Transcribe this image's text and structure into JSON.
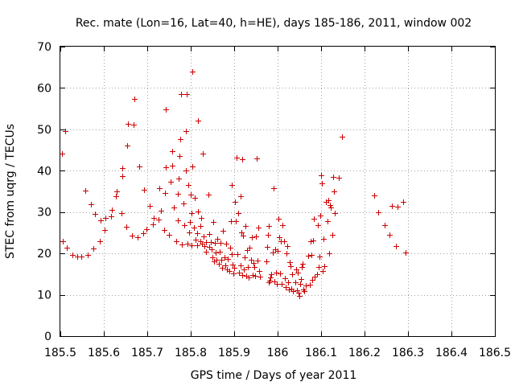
{
  "chart_data": {
    "type": "scatter",
    "title": "Rec. mate (Lon=16, Lat=40, h=HE), days 185-186, 2011, window 002",
    "xlabel": "GPS time / Days of year 2011",
    "ylabel": "STEC from uqrg / TECUs",
    "xlim": [
      185.5,
      186.5
    ],
    "ylim": [
      0,
      70
    ],
    "x_ticks": [
      "185.5",
      "185.6",
      "185.7",
      "185.8",
      "185.9",
      "186",
      "186.1",
      "186.2",
      "186.3",
      "186.4",
      "186.5"
    ],
    "y_ticks": [
      "0",
      "10",
      "20",
      "30",
      "40",
      "50",
      "60",
      "70"
    ],
    "x_tick_values": [
      185.5,
      185.6,
      185.7,
      185.8,
      185.9,
      186.0,
      186.1,
      186.2,
      186.3,
      186.4,
      186.5
    ],
    "y_tick_values": [
      0,
      10,
      20,
      30,
      40,
      50,
      60,
      70
    ],
    "grid": true,
    "marker": "+",
    "color": "#cc0000",
    "points": [
      [
        185.503,
        44.1
      ],
      [
        185.505,
        23.0
      ],
      [
        185.512,
        49.6
      ],
      [
        185.515,
        21.4
      ],
      [
        185.528,
        19.7
      ],
      [
        185.538,
        19.2
      ],
      [
        185.548,
        19.3
      ],
      [
        185.558,
        35.1
      ],
      [
        185.563,
        19.6
      ],
      [
        185.57,
        31.8
      ],
      [
        185.576,
        21.1
      ],
      [
        185.58,
        29.6
      ],
      [
        185.591,
        22.9
      ],
      [
        185.592,
        28.0
      ],
      [
        185.601,
        25.6
      ],
      [
        185.604,
        28.6
      ],
      [
        185.617,
        29.0
      ],
      [
        185.618,
        30.5
      ],
      [
        185.628,
        33.9
      ],
      [
        185.629,
        35.0
      ],
      [
        185.641,
        29.8
      ],
      [
        185.642,
        38.6
      ],
      [
        185.643,
        40.6
      ],
      [
        185.652,
        26.4
      ],
      [
        185.653,
        46.0
      ],
      [
        185.655,
        51.3
      ],
      [
        185.665,
        24.3
      ],
      [
        185.668,
        51.1
      ],
      [
        185.67,
        57.4
      ],
      [
        185.678,
        23.9
      ],
      [
        185.681,
        41.1
      ],
      [
        185.69,
        24.8
      ],
      [
        185.692,
        35.3
      ],
      [
        185.698,
        25.8
      ],
      [
        185.705,
        31.5
      ],
      [
        185.713,
        27.0
      ],
      [
        185.714,
        28.6
      ],
      [
        185.726,
        28.1
      ],
      [
        185.728,
        35.8
      ],
      [
        185.732,
        30.3
      ],
      [
        185.738,
        25.7
      ],
      [
        185.74,
        34.6
      ],
      [
        185.742,
        40.8
      ],
      [
        185.743,
        54.9
      ],
      [
        185.75,
        24.5
      ],
      [
        185.754,
        37.4
      ],
      [
        185.757,
        41.3
      ],
      [
        185.758,
        44.8
      ],
      [
        185.762,
        31.2
      ],
      [
        185.766,
        22.9
      ],
      [
        185.77,
        28.0
      ],
      [
        185.771,
        34.4
      ],
      [
        185.773,
        38.2
      ],
      [
        185.774,
        43.6
      ],
      [
        185.776,
        47.6
      ],
      [
        185.778,
        58.5
      ],
      [
        185.78,
        22.2
      ],
      [
        185.783,
        32.0
      ],
      [
        185.786,
        26.8
      ],
      [
        185.788,
        40.0
      ],
      [
        185.789,
        49.6
      ],
      [
        185.79,
        58.5
      ],
      [
        185.793,
        22.3
      ],
      [
        185.794,
        36.6
      ],
      [
        185.796,
        25.1
      ],
      [
        185.798,
        27.6
      ],
      [
        185.8,
        34.3
      ],
      [
        185.801,
        29.7
      ],
      [
        185.802,
        22.0
      ],
      [
        185.803,
        41.0
      ],
      [
        185.804,
        64.0
      ],
      [
        185.808,
        26.3
      ],
      [
        185.81,
        33.5
      ],
      [
        185.812,
        23.3
      ],
      [
        185.814,
        24.9
      ],
      [
        185.815,
        22.0
      ],
      [
        185.816,
        30.1
      ],
      [
        185.817,
        52.2
      ],
      [
        185.822,
        26.7
      ],
      [
        185.823,
        23.0
      ],
      [
        185.825,
        28.6
      ],
      [
        185.826,
        22.3
      ],
      [
        185.828,
        44.1
      ],
      [
        185.83,
        24.2
      ],
      [
        185.832,
        21.8
      ],
      [
        185.835,
        20.5
      ],
      [
        185.836,
        22.8
      ],
      [
        185.84,
        34.3
      ],
      [
        185.842,
        21.6
      ],
      [
        185.843,
        24.6
      ],
      [
        185.846,
        22.8
      ],
      [
        185.848,
        21.0
      ],
      [
        185.85,
        19.1
      ],
      [
        185.852,
        27.7
      ],
      [
        185.854,
        18.0
      ],
      [
        185.856,
        22.5
      ],
      [
        185.858,
        20.2
      ],
      [
        185.86,
        18.5
      ],
      [
        185.862,
        23.6
      ],
      [
        185.864,
        17.5
      ],
      [
        185.866,
        20.4
      ],
      [
        185.868,
        22.6
      ],
      [
        185.87,
        18.5
      ],
      [
        185.872,
        16.5
      ],
      [
        185.874,
        25.5
      ],
      [
        185.878,
        19.0
      ],
      [
        185.88,
        17.1
      ],
      [
        185.882,
        22.4
      ],
      [
        185.884,
        16.2
      ],
      [
        185.886,
        18.6
      ],
      [
        185.888,
        15.7
      ],
      [
        185.89,
        21.4
      ],
      [
        185.892,
        27.9
      ],
      [
        185.894,
        19.8
      ],
      [
        185.895,
        36.6
      ],
      [
        185.896,
        17.3
      ],
      [
        185.898,
        15.2
      ],
      [
        185.9,
        16.5
      ],
      [
        185.902,
        32.5
      ],
      [
        185.904,
        27.9
      ],
      [
        185.906,
        43.1
      ],
      [
        185.908,
        19.8
      ],
      [
        185.91,
        29.8
      ],
      [
        185.912,
        15.4
      ],
      [
        185.914,
        33.9
      ],
      [
        185.915,
        17.2
      ],
      [
        185.916,
        25.0
      ],
      [
        185.918,
        42.7
      ],
      [
        185.919,
        14.8
      ],
      [
        185.92,
        24.3
      ],
      [
        185.922,
        16.1
      ],
      [
        185.924,
        19.0
      ],
      [
        185.926,
        26.6
      ],
      [
        185.928,
        14.6
      ],
      [
        185.93,
        20.8
      ],
      [
        185.932,
        16.7
      ],
      [
        185.934,
        14.2
      ],
      [
        185.936,
        21.3
      ],
      [
        185.938,
        18.5
      ],
      [
        185.94,
        24.0
      ],
      [
        185.942,
        14.8
      ],
      [
        185.944,
        17.6
      ],
      [
        185.946,
        16.7
      ],
      [
        185.948,
        14.5
      ],
      [
        185.95,
        24.2
      ],
      [
        185.952,
        43.0
      ],
      [
        185.954,
        18.2
      ],
      [
        185.956,
        26.2
      ],
      [
        185.958,
        15.7
      ],
      [
        185.96,
        14.3
      ],
      [
        185.975,
        18.0
      ],
      [
        185.976,
        21.6
      ],
      [
        185.978,
        24.5
      ],
      [
        185.979,
        26.7
      ],
      [
        185.98,
        13.0
      ],
      [
        185.982,
        13.5
      ],
      [
        185.984,
        14.2
      ],
      [
        185.986,
        14.9
      ],
      [
        185.988,
        20.2
      ],
      [
        185.99,
        35.8
      ],
      [
        185.992,
        13.3
      ],
      [
        185.994,
        21.0
      ],
      [
        185.996,
        15.3
      ],
      [
        185.998,
        12.7
      ],
      [
        186.0,
        20.7
      ],
      [
        186.002,
        28.3
      ],
      [
        186.004,
        24.0
      ],
      [
        186.006,
        15.2
      ],
      [
        186.008,
        23.0
      ],
      [
        186.01,
        12.6
      ],
      [
        186.012,
        26.9
      ],
      [
        186.014,
        22.9
      ],
      [
        186.016,
        14.0
      ],
      [
        186.018,
        11.8
      ],
      [
        186.02,
        20.0
      ],
      [
        186.022,
        21.8
      ],
      [
        186.024,
        13.1
      ],
      [
        186.026,
        11.3
      ],
      [
        186.028,
        17.8
      ],
      [
        186.03,
        17.0
      ],
      [
        186.032,
        11.5
      ],
      [
        186.034,
        15.0
      ],
      [
        186.036,
        10.8
      ],
      [
        186.04,
        13.0
      ],
      [
        186.042,
        16.1
      ],
      [
        186.044,
        11.0
      ],
      [
        186.046,
        15.4
      ],
      [
        186.048,
        10.5
      ],
      [
        186.05,
        9.8
      ],
      [
        186.052,
        12.6
      ],
      [
        186.054,
        13.9
      ],
      [
        186.056,
        16.8
      ],
      [
        186.058,
        17.5
      ],
      [
        186.06,
        11.2
      ],
      [
        186.062,
        10.9
      ],
      [
        186.064,
        12.3
      ],
      [
        186.07,
        19.4
      ],
      [
        186.074,
        12.5
      ],
      [
        186.076,
        23.0
      ],
      [
        186.078,
        19.6
      ],
      [
        186.08,
        13.6
      ],
      [
        186.082,
        23.1
      ],
      [
        186.084,
        28.3
      ],
      [
        186.086,
        14.3
      ],
      [
        186.09,
        15.0
      ],
      [
        186.092,
        26.9
      ],
      [
        186.094,
        16.8
      ],
      [
        186.096,
        19.3
      ],
      [
        186.098,
        29.2
      ],
      [
        186.1,
        38.8
      ],
      [
        186.102,
        37.0
      ],
      [
        186.104,
        15.7
      ],
      [
        186.106,
        23.5
      ],
      [
        186.108,
        17.0
      ],
      [
        186.112,
        32.4
      ],
      [
        186.114,
        27.8
      ],
      [
        186.116,
        32.8
      ],
      [
        186.118,
        20.0
      ],
      [
        186.12,
        31.6
      ],
      [
        186.122,
        31.2
      ],
      [
        186.126,
        24.5
      ],
      [
        186.128,
        38.5
      ],
      [
        186.13,
        35.0
      ],
      [
        186.132,
        29.8
      ],
      [
        186.14,
        38.4
      ],
      [
        186.148,
        48.2
      ],
      [
        186.222,
        34.0
      ],
      [
        186.232,
        30.0
      ],
      [
        186.246,
        26.8
      ],
      [
        186.258,
        24.5
      ],
      [
        186.263,
        31.5
      ],
      [
        186.273,
        21.8
      ],
      [
        186.276,
        31.4
      ],
      [
        186.288,
        32.4
      ],
      [
        186.294,
        20.2
      ]
    ]
  }
}
